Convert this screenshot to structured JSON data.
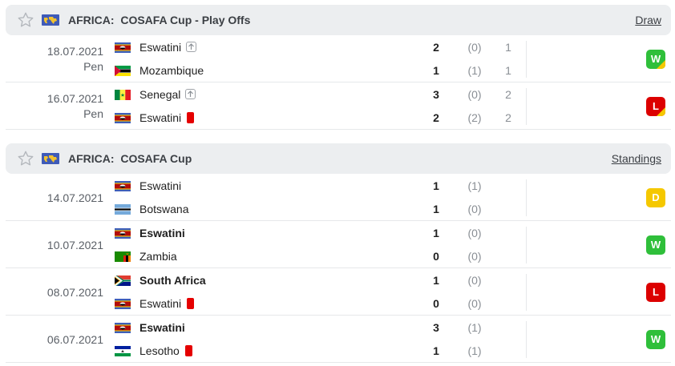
{
  "sections": [
    {
      "region": "AFRICA:",
      "competition": "COSAFA Cup - Play Offs",
      "link": "Draw",
      "matches": [
        {
          "date": "18.07.2021",
          "note": "Pen",
          "result": "W",
          "result_extra": "penalty-win",
          "home": {
            "name": "Eswatini",
            "bold": false,
            "flag": "eswatini",
            "icon": "up",
            "score": "2",
            "ht": "(0)",
            "pen": "1"
          },
          "away": {
            "name": "Mozambique",
            "bold": false,
            "flag": "mozambique",
            "icon": "",
            "score": "1",
            "ht": "(1)",
            "pen": "1"
          }
        },
        {
          "date": "16.07.2021",
          "note": "Pen",
          "result": "L",
          "result_extra": "penalty-loss",
          "home": {
            "name": "Senegal",
            "bold": false,
            "flag": "senegal",
            "icon": "up",
            "score": "3",
            "ht": "(0)",
            "pen": "2"
          },
          "away": {
            "name": "Eswatini",
            "bold": false,
            "flag": "eswatini",
            "icon": "red-card",
            "score": "2",
            "ht": "(2)",
            "pen": "2"
          }
        }
      ]
    },
    {
      "region": "AFRICA:",
      "competition": "COSAFA Cup",
      "link": "Standings",
      "matches": [
        {
          "date": "14.07.2021",
          "note": "",
          "result": "D",
          "result_extra": "",
          "home": {
            "name": "Eswatini",
            "bold": false,
            "flag": "eswatini",
            "icon": "",
            "score": "1",
            "ht": "(1)",
            "pen": ""
          },
          "away": {
            "name": "Botswana",
            "bold": false,
            "flag": "botswana",
            "icon": "",
            "score": "1",
            "ht": "(0)",
            "pen": ""
          }
        },
        {
          "date": "10.07.2021",
          "note": "",
          "result": "W",
          "result_extra": "",
          "home": {
            "name": "Eswatini",
            "bold": true,
            "flag": "eswatini",
            "icon": "",
            "score": "1",
            "ht": "(0)",
            "pen": ""
          },
          "away": {
            "name": "Zambia",
            "bold": false,
            "flag": "zambia",
            "icon": "",
            "score": "0",
            "ht": "(0)",
            "pen": ""
          }
        },
        {
          "date": "08.07.2021",
          "note": "",
          "result": "L",
          "result_extra": "",
          "home": {
            "name": "South Africa",
            "bold": true,
            "flag": "south-africa",
            "icon": "",
            "score": "1",
            "ht": "(0)",
            "pen": ""
          },
          "away": {
            "name": "Eswatini",
            "bold": false,
            "flag": "eswatini",
            "icon": "red-card",
            "score": "0",
            "ht": "(0)",
            "pen": ""
          }
        },
        {
          "date": "06.07.2021",
          "note": "",
          "result": "W",
          "result_extra": "",
          "home": {
            "name": "Eswatini",
            "bold": true,
            "flag": "eswatini",
            "icon": "",
            "score": "3",
            "ht": "(1)",
            "pen": ""
          },
          "away": {
            "name": "Lesotho",
            "bold": false,
            "flag": "lesotho",
            "icon": "red-card",
            "score": "1",
            "ht": "(1)",
            "pen": ""
          }
        }
      ]
    }
  ],
  "colors": {
    "win": "#2fbf3a",
    "loss": "#dc0000",
    "draw": "#f5c800"
  }
}
